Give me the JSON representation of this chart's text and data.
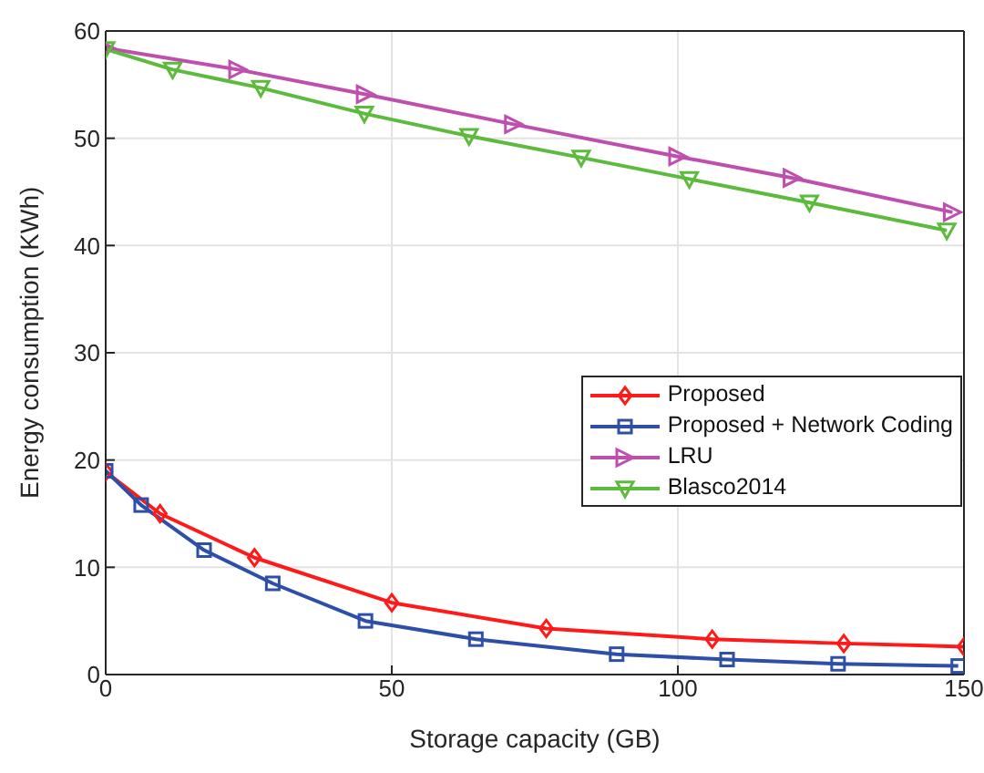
{
  "chart_data": {
    "type": "line",
    "xlabel": "Storage capacity (GB)",
    "ylabel": "Energy consumption (KWh)",
    "xlim": [
      0,
      150
    ],
    "xticks": [
      0,
      50,
      100,
      150
    ],
    "ylim": [
      0,
      60
    ],
    "yticks": [
      0,
      10,
      20,
      30,
      40,
      50,
      60
    ],
    "grid": true,
    "legend": "right",
    "series": [
      {
        "name": "Proposed",
        "color": "#ff1a1a",
        "marker": "diamond",
        "x": [
          0,
          9.5,
          26,
          50,
          77,
          106,
          129,
          150
        ],
        "values": [
          18.9,
          15.0,
          10.9,
          6.7,
          4.3,
          3.3,
          2.9,
          2.6
        ]
      },
      {
        "name": "Proposed + Network Coding",
        "color": "#2e4fa8",
        "marker": "square",
        "x": [
          0,
          6.2,
          17.2,
          29.2,
          45.4,
          64.7,
          89.3,
          108.6,
          128,
          149
        ],
        "values": [
          19.0,
          15.8,
          11.6,
          8.5,
          5.0,
          3.3,
          1.9,
          1.4,
          1.0,
          0.8
        ]
      },
      {
        "name": "LRU",
        "color": "#bf4fae",
        "marker": "triangle-right",
        "x": [
          0,
          23.1,
          45.4,
          71.3,
          100,
          120,
          148
        ],
        "values": [
          58.4,
          56.4,
          54.1,
          51.3,
          48.3,
          46.3,
          43.1
        ]
      },
      {
        "name": "Blasco2014",
        "color": "#5cba3c",
        "marker": "triangle-down",
        "x": [
          0,
          11.7,
          27.1,
          45.2,
          63.5,
          83.1,
          102,
          123,
          147
        ],
        "values": [
          58.3,
          56.4,
          54.7,
          52.3,
          50.2,
          48.2,
          46.2,
          44.0,
          41.4
        ]
      }
    ]
  }
}
